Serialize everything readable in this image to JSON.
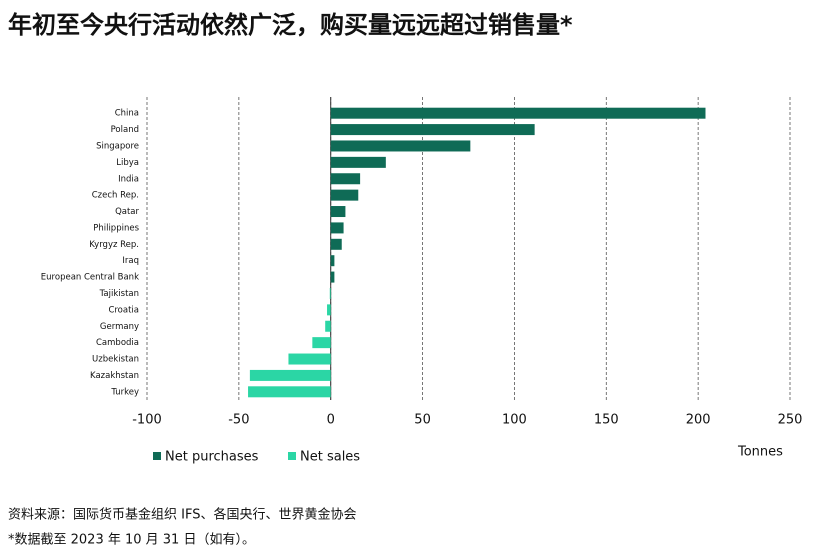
{
  "chart_data": {
    "type": "hbar",
    "title": "年初至今央行活动依然广泛，购买量远远超过销售量*",
    "categories": [
      "China",
      "Poland",
      "Singapore",
      "Libya",
      "India",
      "Czech Rep.",
      "Qatar",
      "Philippines",
      "Kyrgyz Rep.",
      "Iraq",
      "European Central Bank",
      "Tajikistan",
      "Croatia",
      "Germany",
      "Cambodia",
      "Uzbekistan",
      "Kazakhstan",
      "Turkey"
    ],
    "series": [
      {
        "name": "Net purchases",
        "color": "#0f6b56",
        "values": [
          204,
          111,
          76,
          30,
          16,
          15,
          8,
          7,
          6,
          2,
          2,
          null,
          null,
          null,
          null,
          null,
          null,
          null
        ]
      },
      {
        "name": "Net sales",
        "color": "#2bd6a5",
        "values": [
          null,
          null,
          null,
          null,
          null,
          null,
          null,
          null,
          null,
          null,
          null,
          -0.5,
          -2,
          -3,
          -10,
          -23,
          -44,
          -45
        ]
      }
    ],
    "xlim": [
      -100,
      250
    ],
    "xticks": [
      -100,
      -50,
      0,
      50,
      100,
      150,
      200,
      250
    ],
    "grid": true,
    "x_label": "Tonnes",
    "source": "资料来源：国际货币基金组织 IFS、各国央行、世界黄金协会",
    "note": "*数据截至 2023 年 10 月 31 日（如有）。"
  }
}
